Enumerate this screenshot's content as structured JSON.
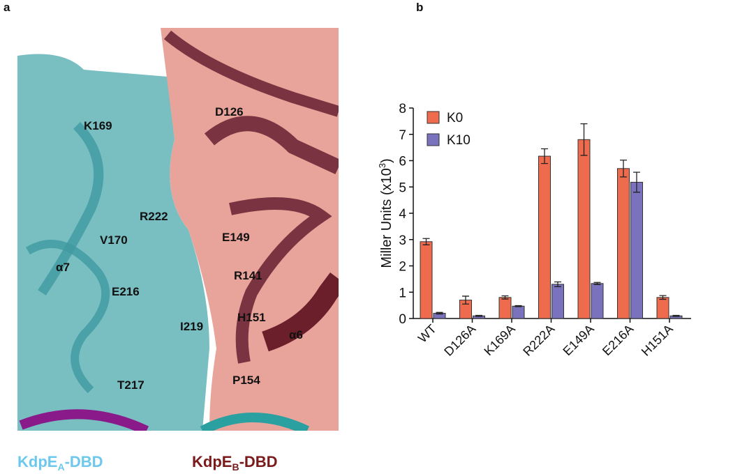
{
  "panels": {
    "a": "a",
    "b": "b"
  },
  "structure": {
    "residues": [
      "K169",
      "D126",
      "R222",
      "V170",
      "E149",
      "R141",
      "E216",
      "H151",
      "I219",
      "P154",
      "T217"
    ],
    "helices": [
      "α7",
      "α6"
    ],
    "domain_a": {
      "name": "KdpE",
      "sub": "A",
      "suffix": "-DBD"
    },
    "domain_b": {
      "name": "KdpE",
      "sub": "B",
      "suffix": "-DBD"
    }
  },
  "chart_data": {
    "type": "bar",
    "ylabel": {
      "text": "Miller Units (x10",
      "sup": "3",
      "end": ")"
    },
    "categories": [
      "WT",
      "D126A",
      "K169A",
      "R222A",
      "E149A",
      "E216A",
      "H151A"
    ],
    "series": [
      {
        "name": "K0",
        "color": "#ef6b4e",
        "values": [
          2.92,
          0.7,
          0.8,
          6.17,
          6.8,
          5.7,
          0.8
        ],
        "errors": [
          0.12,
          0.15,
          0.06,
          0.28,
          0.6,
          0.32,
          0.07
        ]
      },
      {
        "name": "K10",
        "color": "#7b72bd",
        "values": [
          0.2,
          0.1,
          0.47,
          1.3,
          1.33,
          5.18,
          0.1
        ],
        "errors": [
          0.03,
          0.02,
          0.02,
          0.09,
          0.04,
          0.38,
          0.02
        ]
      }
    ],
    "ylim": [
      0,
      8
    ],
    "yticks": [
      0,
      1,
      2,
      3,
      4,
      5,
      6,
      7,
      8
    ],
    "legend": "upper-left"
  }
}
